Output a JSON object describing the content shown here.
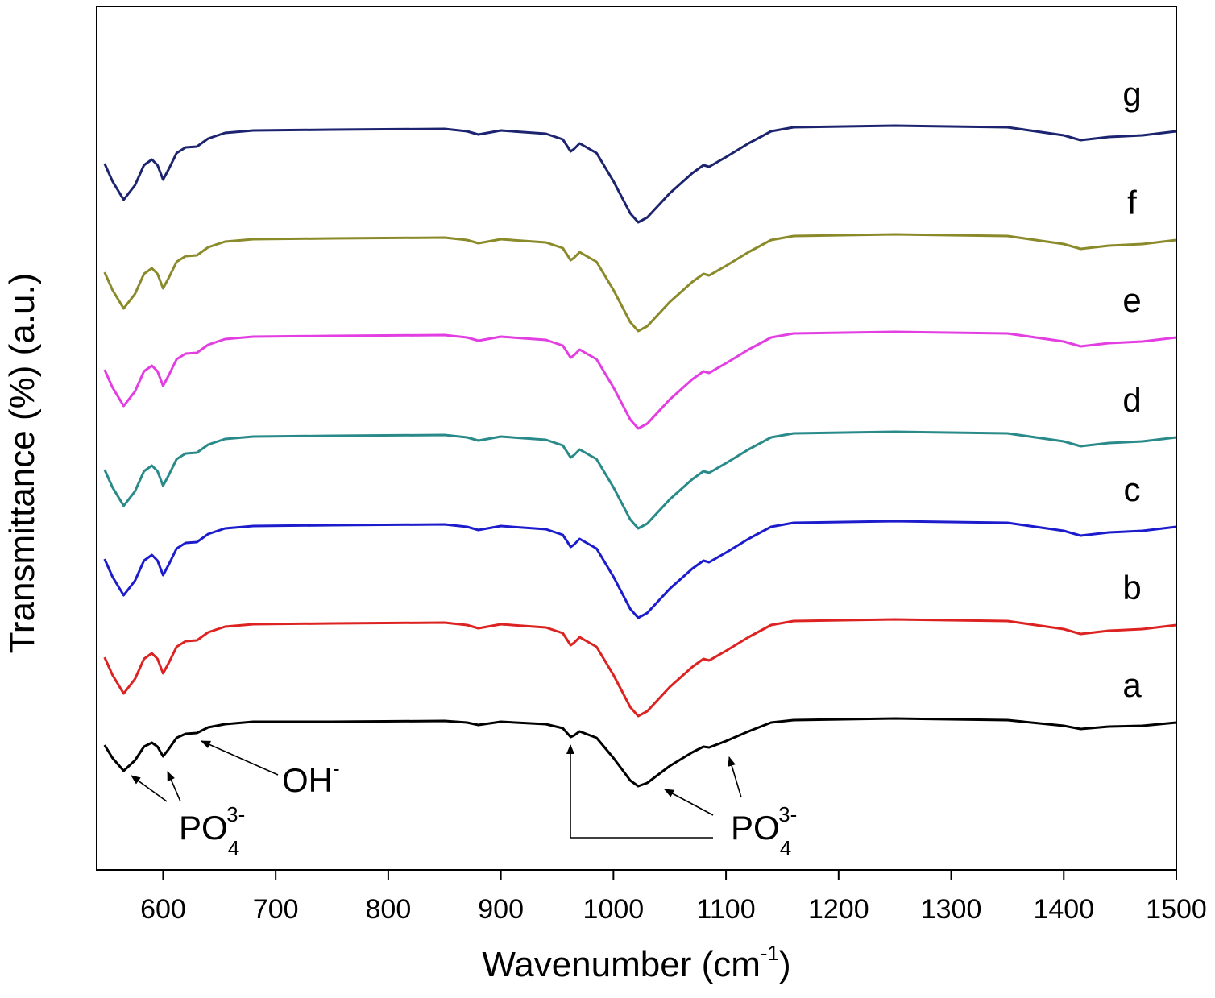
{
  "chart_data": {
    "type": "line",
    "x_label": [
      "Wavenumber (cm",
      "-1",
      ")"
    ],
    "y_label": "Transmittance (%) (a.u.)",
    "x": [
      548,
      555,
      565,
      575,
      583,
      590,
      595,
      600,
      605,
      612,
      620,
      630,
      640,
      655,
      680,
      750,
      850,
      870,
      880,
      900,
      940,
      955,
      962,
      965,
      970,
      985,
      1000,
      1015,
      1022,
      1030,
      1050,
      1070,
      1080,
      1085,
      1100,
      1120,
      1140,
      1160,
      1250,
      1350,
      1400,
      1415,
      1440,
      1470,
      1500
    ],
    "series": [
      {
        "name": "g",
        "color": "#1c2470",
        "values": [
          877,
          855,
          832,
          850,
          875,
          882,
          875,
          857,
          870,
          890,
          897,
          898,
          908,
          915,
          918,
          919,
          920,
          917,
          913,
          918,
          914,
          907,
          892,
          895,
          902,
          890,
          855,
          815,
          804,
          810,
          840,
          865,
          875,
          873,
          885,
          902,
          917,
          922,
          924,
          922,
          912,
          906,
          910,
          912,
          917
        ]
      },
      {
        "name": "f",
        "color": "#8a8a2a",
        "values": [
          742,
          720,
          697,
          715,
          740,
          747,
          740,
          722,
          735,
          755,
          762,
          763,
          773,
          780,
          783,
          784,
          785,
          782,
          778,
          783,
          779,
          772,
          757,
          760,
          767,
          755,
          720,
          680,
          669,
          675,
          705,
          730,
          740,
          738,
          750,
          767,
          782,
          787,
          789,
          787,
          777,
          771,
          775,
          777,
          782
        ]
      },
      {
        "name": "e",
        "color": "#e23ee2",
        "values": [
          621,
          599,
          576,
          594,
          619,
          626,
          619,
          601,
          614,
          634,
          641,
          642,
          652,
          659,
          662,
          663,
          664,
          661,
          657,
          662,
          658,
          651,
          636,
          639,
          646,
          634,
          599,
          559,
          548,
          554,
          584,
          609,
          619,
          617,
          629,
          646,
          661,
          666,
          668,
          666,
          656,
          650,
          654,
          656,
          661
        ]
      },
      {
        "name": "d",
        "color": "#2a8a8a",
        "values": [
          497,
          475,
          452,
          470,
          495,
          502,
          495,
          477,
          490,
          510,
          517,
          518,
          528,
          535,
          538,
          539,
          540,
          537,
          533,
          538,
          534,
          527,
          512,
          515,
          522,
          510,
          475,
          435,
          424,
          430,
          460,
          485,
          495,
          493,
          505,
          522,
          537,
          542,
          544,
          542,
          532,
          526,
          530,
          532,
          537
        ]
      },
      {
        "name": "c",
        "color": "#1c1ccc",
        "values": [
          386,
          364,
          341,
          359,
          384,
          391,
          384,
          366,
          379,
          399,
          406,
          407,
          417,
          424,
          427,
          428,
          429,
          426,
          422,
          427,
          423,
          416,
          401,
          404,
          411,
          399,
          364,
          324,
          313,
          319,
          349,
          374,
          384,
          382,
          394,
          411,
          426,
          431,
          433,
          431,
          421,
          415,
          419,
          421,
          426
        ]
      },
      {
        "name": "b",
        "color": "#dd2222",
        "values": [
          264,
          242,
          219,
          237,
          262,
          269,
          262,
          244,
          257,
          277,
          284,
          285,
          295,
          302,
          305,
          306,
          307,
          304,
          300,
          305,
          301,
          294,
          279,
          282,
          289,
          277,
          242,
          202,
          191,
          197,
          227,
          252,
          262,
          260,
          272,
          289,
          304,
          309,
          311,
          309,
          299,
          293,
          297,
          299,
          304
        ]
      },
      {
        "name": "a",
        "color": "#000000",
        "values": [
          155,
          139,
          123,
          136,
          153,
          158,
          153,
          141,
          150,
          164,
          169,
          170,
          177,
          181,
          184,
          184,
          185,
          183,
          180,
          184,
          181,
          176,
          165,
          167,
          172,
          164,
          139,
          111,
          104,
          108,
          129,
          146,
          153,
          152,
          160,
          172,
          183,
          186,
          188,
          186,
          179,
          175,
          178,
          179,
          183
        ]
      }
    ],
    "xlim": [
      541,
      1500
    ],
    "xticks": [
      600,
      700,
      800,
      900,
      1000,
      1100,
      1200,
      1300,
      1400,
      1500
    ],
    "ylim": [
      0,
      1072
    ],
    "annotations": [
      {
        "text": "OH",
        "sup": "-"
      },
      {
        "text": "PO",
        "sub": "4",
        "sup": "3-"
      },
      {
        "text": "PO",
        "sub": "4",
        "sup": "3-"
      }
    ]
  }
}
